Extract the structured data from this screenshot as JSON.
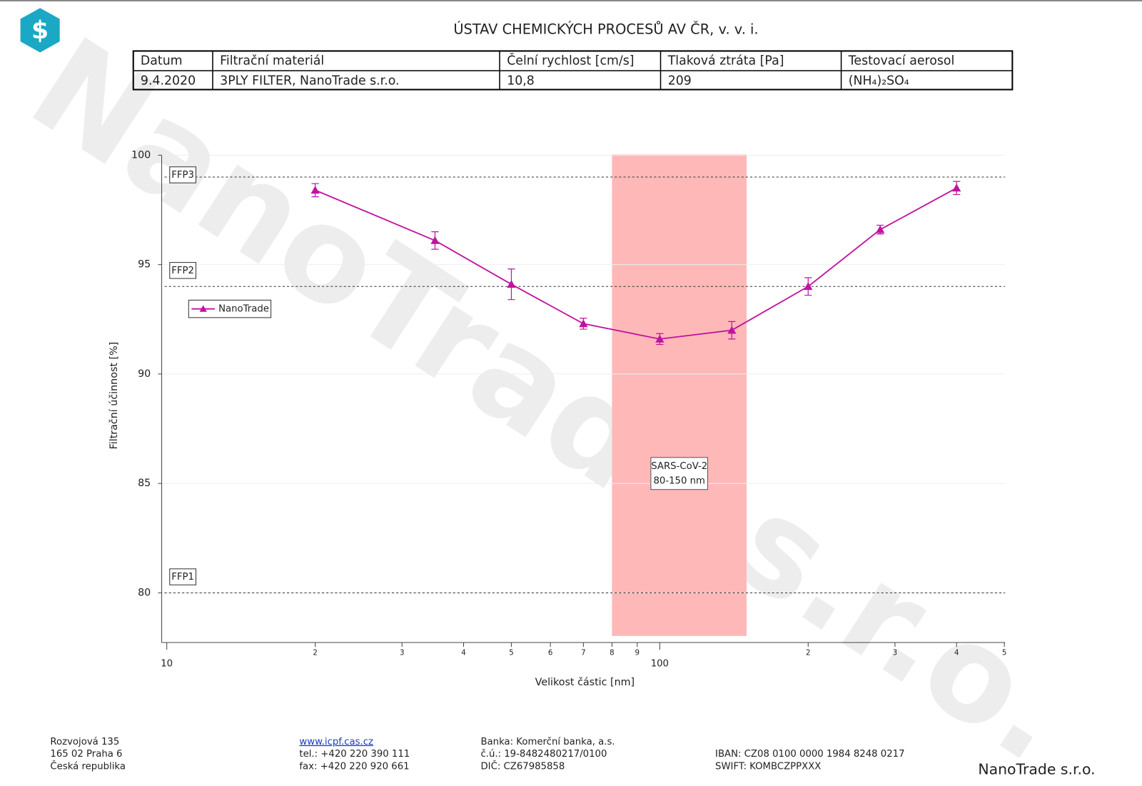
{
  "header": {
    "title": "ÚSTAV CHEMICKÝCH PROCESŮ AV ČR, v. v. i."
  },
  "table": {
    "columns": [
      "Datum",
      "Filtrační materiál",
      "Čelní rychlost [cm/s]",
      "Tlaková ztráta [Pa]",
      "Testovací aerosol"
    ],
    "rows": [
      [
        "9.4.2020",
        "3PLY FILTER, NanoTrade s.r.o.",
        "10,8",
        "209",
        "(NH₄)₂SO₄"
      ]
    ]
  },
  "chart_data": {
    "type": "line",
    "x_label": "Velikost částic [nm]",
    "y_label": "Filtrační účinnost [%]",
    "x": [
      20,
      35,
      50,
      70,
      100,
      140,
      200,
      280,
      400
    ],
    "series": [
      {
        "name": "NanoTrade",
        "color": "#c0139f",
        "values": [
          98.4,
          96.1,
          94.1,
          92.3,
          91.6,
          92.0,
          94.0,
          96.6,
          98.5
        ],
        "errors": [
          0.3,
          0.4,
          0.7,
          0.25,
          0.25,
          0.4,
          0.4,
          0.2,
          0.3
        ]
      }
    ],
    "x_log": true,
    "xlim": [
      10,
      500
    ],
    "ylim": [
      77.8,
      100
    ],
    "xticks": [
      10,
      {
        "value": 20,
        "label": "2"
      },
      {
        "value": 30,
        "label": "3"
      },
      {
        "value": 40,
        "label": "4"
      },
      {
        "value": 50,
        "label": "5"
      },
      {
        "value": 60,
        "label": "6"
      },
      {
        "value": 70,
        "label": "7"
      },
      {
        "value": 80,
        "label": "8"
      },
      {
        "value": 90,
        "label": "9"
      },
      100,
      {
        "value": 200,
        "label": "2"
      },
      {
        "value": 300,
        "label": "3"
      },
      {
        "value": 400,
        "label": "4"
      },
      {
        "value": 500,
        "label": "5"
      }
    ],
    "yticks": [
      80,
      85,
      90,
      95,
      100
    ],
    "grid": true,
    "legend": "upper left",
    "reference_lines": [
      {
        "value": 99,
        "label": "FFP3"
      },
      {
        "value": 94,
        "label": "FFP2"
      },
      {
        "value": 80,
        "label": "FFP1"
      }
    ],
    "band": {
      "x": [
        80,
        150
      ],
      "color": "#ffb8b8",
      "label": [
        "SARS-CoV-2",
        "80-150 nm"
      ]
    }
  },
  "watermark": "NanoTrade s.r.o.",
  "footer": {
    "address": [
      "Rozvojová 135",
      "165 02 Praha 6",
      "Česká republika"
    ],
    "web": "www.icpf.cas.cz",
    "contacts": [
      "tel.: +420 220 390 111",
      "fax: +420 220 920 661"
    ],
    "bank": [
      "Banka: Komerční banka, a.s.",
      "č.ú.: 19-8482480217/0100",
      "DIČ: CZ67985858"
    ],
    "iban": [
      "IBAN: CZ08 0100 0000 1984 8248 0217",
      "SWIFT: KOMBCZPPXXX"
    ],
    "brand": "NanoTrade s.r.o."
  }
}
